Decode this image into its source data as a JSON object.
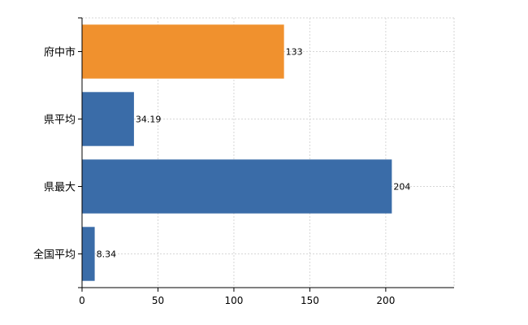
{
  "chart_data": {
    "type": "bar",
    "orientation": "horizontal",
    "categories": [
      "府中市",
      "県平均",
      "県最大",
      "全国平均"
    ],
    "values": [
      133,
      34.19,
      204,
      8.34
    ],
    "data_labels": [
      "133",
      "34.19",
      "204",
      "8.34"
    ],
    "bar_colors": [
      "#f0912e",
      "#3a6ca8",
      "#3a6ca8",
      "#3a6ca8"
    ],
    "xlim": [
      0,
      245
    ],
    "xticks": [
      0,
      50,
      100,
      150,
      200
    ],
    "xtick_labels": [
      "0",
      "50",
      "100",
      "150",
      "200"
    ],
    "title": "",
    "xlabel": "",
    "ylabel": "",
    "grid": true,
    "legend": "none"
  }
}
